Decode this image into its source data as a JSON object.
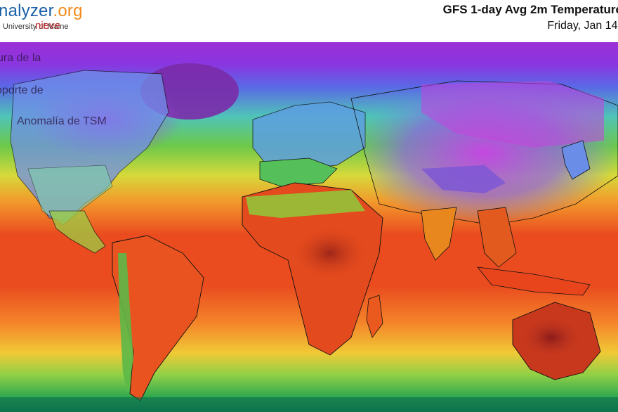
{
  "header": {
    "brand_part1": "alyzer",
    "brand_part2": ".org",
    "brand_prefix": "n",
    "university": "| University of Maine",
    "nieve": "nieve",
    "title": "GFS 1-day Avg 2m Temperature",
    "subtitle": "Friday, Jan 14,"
  },
  "overlay": {
    "line1": "ura de la",
    "line2": "oporte de",
    "line3": "Anomalía de TSM"
  },
  "colors": {
    "brand_orange": "#f28a1a",
    "brand_blue": "#1b5fa8",
    "hot": "#e3401d",
    "warm": "#f58a2a",
    "mild": "#f3d23a",
    "temperate": "#5bbf3c",
    "cool": "#48c2b8",
    "cold": "#6f8fe8",
    "very_cold": "#b13fe0",
    "extreme_cold": "#7e2aa8"
  }
}
